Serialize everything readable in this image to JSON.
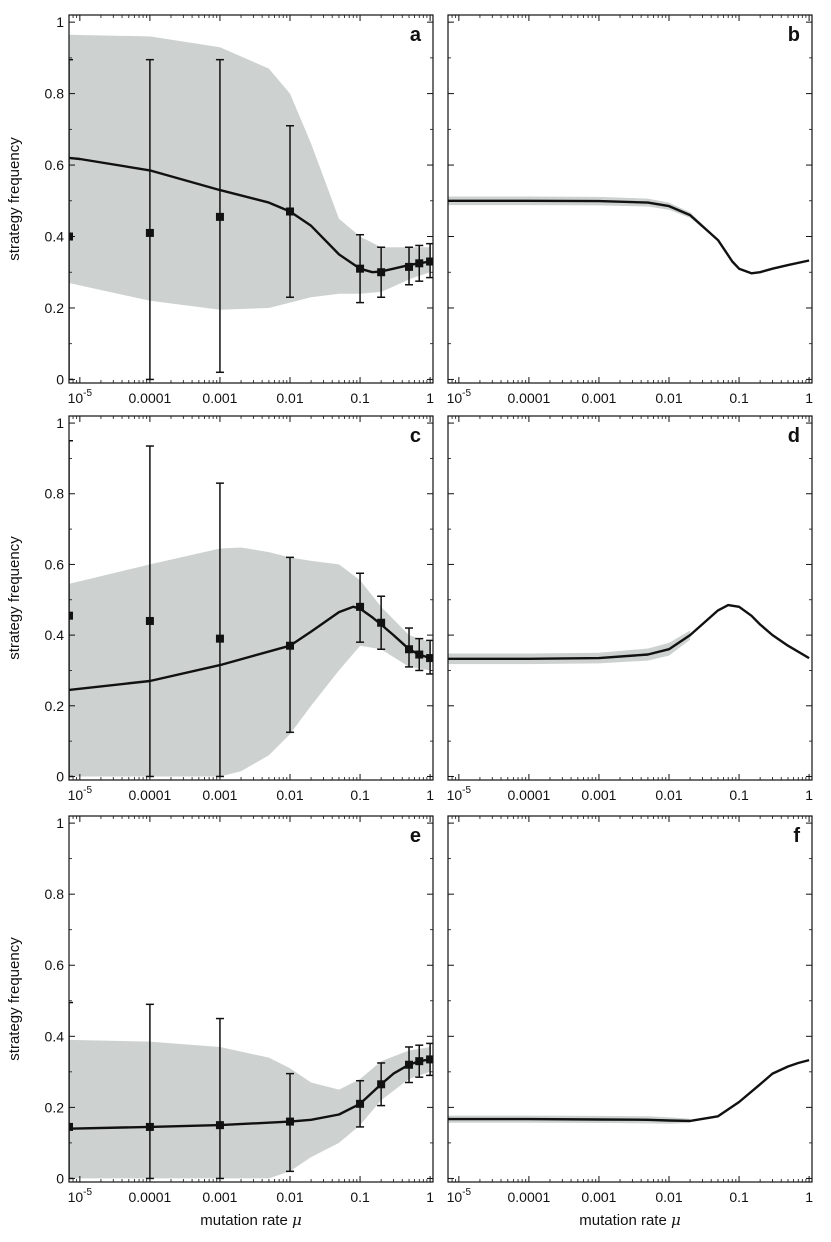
{
  "figure": {
    "ylabel": "strategy frequency",
    "xlabel": "mutation rate",
    "xlabel_symbol": "μ",
    "x_ticks": [
      {
        "value": 1e-05,
        "base": "10",
        "exp": "-5"
      },
      {
        "value": 0.0001,
        "label": "0.0001"
      },
      {
        "value": 0.001,
        "label": "0.001"
      },
      {
        "value": 0.01,
        "label": "0.01"
      },
      {
        "value": 0.1,
        "label": "0.1"
      },
      {
        "value": 1,
        "label": "1"
      }
    ],
    "y_ticks": [
      {
        "value": 0,
        "label": "0"
      },
      {
        "value": 0.2,
        "label": "0.2"
      },
      {
        "value": 0.4,
        "label": "0.4"
      },
      {
        "value": 0.6,
        "label": "0.6"
      },
      {
        "value": 0.8,
        "label": "0.8"
      },
      {
        "value": 1,
        "label": "1"
      }
    ]
  },
  "chart_data": [
    {
      "panel": "a",
      "type": "line",
      "xscale": "log",
      "xlim": [
        7e-06,
        1.1
      ],
      "ylim": [
        -0.01,
        1.02
      ],
      "line": {
        "x": [
          7e-06,
          1e-05,
          0.0001,
          0.001,
          0.005,
          0.01,
          0.02,
          0.05,
          0.1,
          0.15,
          0.2,
          0.3,
          0.5,
          0.7,
          1
        ],
        "y": [
          0.62,
          0.617,
          0.585,
          0.53,
          0.495,
          0.47,
          0.43,
          0.35,
          0.31,
          0.3,
          0.302,
          0.31,
          0.32,
          0.325,
          0.33
        ]
      },
      "band": {
        "x": [
          7e-06,
          0.0001,
          0.001,
          0.005,
          0.01,
          0.02,
          0.05,
          0.1,
          0.2,
          0.3,
          0.5,
          0.7,
          1
        ],
        "upper": [
          0.965,
          0.96,
          0.93,
          0.87,
          0.8,
          0.66,
          0.45,
          0.4,
          0.37,
          0.37,
          0.37,
          0.37,
          0.37
        ],
        "lower": [
          0.27,
          0.22,
          0.195,
          0.2,
          0.215,
          0.23,
          0.24,
          0.24,
          0.245,
          0.26,
          0.28,
          0.29,
          0.3
        ]
      },
      "points": [
        {
          "x": 7e-06,
          "y": 0.4,
          "lo": 0,
          "hi": 0.895
        },
        {
          "x": 0.0001,
          "y": 0.41,
          "lo": 0,
          "hi": 0.895
        },
        {
          "x": 0.001,
          "y": 0.455,
          "lo": 0.02,
          "hi": 0.895
        },
        {
          "x": 0.01,
          "y": 0.47,
          "lo": 0.23,
          "hi": 0.71
        },
        {
          "x": 0.1,
          "y": 0.31,
          "lo": 0.215,
          "hi": 0.405
        },
        {
          "x": 0.2,
          "y": 0.3,
          "lo": 0.23,
          "hi": 0.37
        },
        {
          "x": 0.5,
          "y": 0.315,
          "lo": 0.265,
          "hi": 0.37
        },
        {
          "x": 0.7,
          "y": 0.325,
          "lo": 0.275,
          "hi": 0.375
        },
        {
          "x": 1,
          "y": 0.33,
          "lo": 0.285,
          "hi": 0.38
        }
      ]
    },
    {
      "panel": "b",
      "type": "line",
      "xscale": "log",
      "xlim": [
        7e-06,
        1.1
      ],
      "ylim": [
        -0.01,
        1.02
      ],
      "line": {
        "x": [
          7e-06,
          0.0001,
          0.001,
          0.005,
          0.01,
          0.02,
          0.05,
          0.08,
          0.1,
          0.15,
          0.2,
          0.3,
          0.5,
          1
        ],
        "y": [
          0.5,
          0.5,
          0.499,
          0.495,
          0.485,
          0.46,
          0.39,
          0.33,
          0.31,
          0.297,
          0.3,
          0.31,
          0.32,
          0.333
        ]
      },
      "band": {
        "x": [
          7e-06,
          0.0001,
          0.001,
          0.005,
          0.01,
          0.02,
          0.05
        ],
        "upper": [
          0.512,
          0.512,
          0.511,
          0.506,
          0.495,
          0.468,
          0.392
        ],
        "lower": [
          0.488,
          0.488,
          0.487,
          0.484,
          0.475,
          0.452,
          0.388
        ]
      },
      "points": []
    },
    {
      "panel": "c",
      "type": "line",
      "xscale": "log",
      "xlim": [
        7e-06,
        1.1
      ],
      "ylim": [
        -0.01,
        1.02
      ],
      "line": {
        "x": [
          7e-06,
          0.0001,
          0.001,
          0.01,
          0.02,
          0.05,
          0.08,
          0.1,
          0.15,
          0.2,
          0.3,
          0.5,
          0.7,
          1
        ],
        "y": [
          0.245,
          0.27,
          0.315,
          0.37,
          0.41,
          0.465,
          0.48,
          0.475,
          0.45,
          0.43,
          0.4,
          0.36,
          0.345,
          0.335
        ]
      },
      "band": {
        "x": [
          7e-06,
          0.0001,
          0.001,
          0.002,
          0.005,
          0.01,
          0.02,
          0.05,
          0.1,
          0.2,
          0.5,
          1
        ],
        "upper": [
          0.545,
          0.6,
          0.645,
          0.648,
          0.635,
          0.62,
          0.61,
          0.6,
          0.555,
          0.48,
          0.4,
          0.38
        ],
        "lower": [
          0,
          0,
          0,
          0.015,
          0.06,
          0.12,
          0.2,
          0.3,
          0.37,
          0.36,
          0.31,
          0.3
        ]
      },
      "points": [
        {
          "x": 7e-06,
          "y": 0.455,
          "lo": 0,
          "hi": 0.95
        },
        {
          "x": 0.0001,
          "y": 0.44,
          "lo": 0,
          "hi": 0.935
        },
        {
          "x": 0.001,
          "y": 0.39,
          "lo": 0,
          "hi": 0.83
        },
        {
          "x": 0.01,
          "y": 0.37,
          "lo": 0.125,
          "hi": 0.62
        },
        {
          "x": 0.1,
          "y": 0.48,
          "lo": 0.38,
          "hi": 0.575
        },
        {
          "x": 0.2,
          "y": 0.435,
          "lo": 0.36,
          "hi": 0.51
        },
        {
          "x": 0.5,
          "y": 0.36,
          "lo": 0.31,
          "hi": 0.42
        },
        {
          "x": 0.7,
          "y": 0.345,
          "lo": 0.3,
          "hi": 0.39
        },
        {
          "x": 1,
          "y": 0.335,
          "lo": 0.29,
          "hi": 0.385
        }
      ]
    },
    {
      "panel": "d",
      "type": "line",
      "xscale": "log",
      "xlim": [
        7e-06,
        1.1
      ],
      "ylim": [
        -0.01,
        1.02
      ],
      "line": {
        "x": [
          7e-06,
          0.0001,
          0.001,
          0.005,
          0.01,
          0.02,
          0.05,
          0.07,
          0.1,
          0.15,
          0.2,
          0.3,
          0.5,
          1
        ],
        "y": [
          0.333,
          0.333,
          0.335,
          0.345,
          0.36,
          0.4,
          0.47,
          0.485,
          0.48,
          0.455,
          0.43,
          0.4,
          0.37,
          0.335
        ]
      },
      "band": {
        "x": [
          7e-06,
          0.0001,
          0.001,
          0.005,
          0.01,
          0.02
        ],
        "upper": [
          0.348,
          0.348,
          0.35,
          0.362,
          0.378,
          0.413
        ],
        "lower": [
          0.318,
          0.318,
          0.32,
          0.328,
          0.342,
          0.387
        ]
      },
      "points": []
    },
    {
      "panel": "e",
      "type": "line",
      "xscale": "log",
      "xlim": [
        7e-06,
        1.1
      ],
      "ylim": [
        -0.01,
        1.02
      ],
      "line": {
        "x": [
          7e-06,
          0.0001,
          0.001,
          0.01,
          0.02,
          0.05,
          0.1,
          0.2,
          0.3,
          0.5,
          0.7,
          1
        ],
        "y": [
          0.14,
          0.145,
          0.15,
          0.16,
          0.165,
          0.18,
          0.21,
          0.265,
          0.295,
          0.32,
          0.33,
          0.335
        ]
      },
      "band": {
        "x": [
          7e-06,
          0.0001,
          0.001,
          0.005,
          0.01,
          0.02,
          0.05,
          0.1,
          0.2,
          0.5,
          1
        ],
        "upper": [
          0.39,
          0.385,
          0.37,
          0.34,
          0.31,
          0.27,
          0.25,
          0.28,
          0.33,
          0.36,
          0.37
        ],
        "lower": [
          0,
          0,
          0,
          0,
          0.02,
          0.06,
          0.1,
          0.15,
          0.22,
          0.28,
          0.3
        ]
      },
      "points": [
        {
          "x": 7e-06,
          "y": 0.145,
          "lo": 0,
          "hi": 0.495
        },
        {
          "x": 0.0001,
          "y": 0.145,
          "lo": 0,
          "hi": 0.49
        },
        {
          "x": 0.001,
          "y": 0.15,
          "lo": 0,
          "hi": 0.45
        },
        {
          "x": 0.01,
          "y": 0.16,
          "lo": 0.02,
          "hi": 0.295
        },
        {
          "x": 0.1,
          "y": 0.21,
          "lo": 0.145,
          "hi": 0.275
        },
        {
          "x": 0.2,
          "y": 0.265,
          "lo": 0.205,
          "hi": 0.325
        },
        {
          "x": 0.5,
          "y": 0.32,
          "lo": 0.27,
          "hi": 0.37
        },
        {
          "x": 0.7,
          "y": 0.33,
          "lo": 0.285,
          "hi": 0.375
        },
        {
          "x": 1,
          "y": 0.335,
          "lo": 0.29,
          "hi": 0.38
        }
      ]
    },
    {
      "panel": "f",
      "type": "line",
      "xscale": "log",
      "xlim": [
        7e-06,
        1.1
      ],
      "ylim": [
        -0.01,
        1.02
      ],
      "line": {
        "x": [
          7e-06,
          0.0001,
          0.001,
          0.005,
          0.01,
          0.02,
          0.05,
          0.1,
          0.2,
          0.3,
          0.5,
          0.7,
          1
        ],
        "y": [
          0.167,
          0.167,
          0.166,
          0.165,
          0.163,
          0.162,
          0.175,
          0.215,
          0.265,
          0.295,
          0.315,
          0.325,
          0.333
        ]
      },
      "band": {
        "x": [
          7e-06,
          0.0001,
          0.001,
          0.005,
          0.01,
          0.02
        ],
        "upper": [
          0.177,
          0.177,
          0.176,
          0.175,
          0.172,
          0.168
        ],
        "lower": [
          0.157,
          0.157,
          0.156,
          0.155,
          0.154,
          0.156
        ]
      },
      "points": []
    }
  ]
}
